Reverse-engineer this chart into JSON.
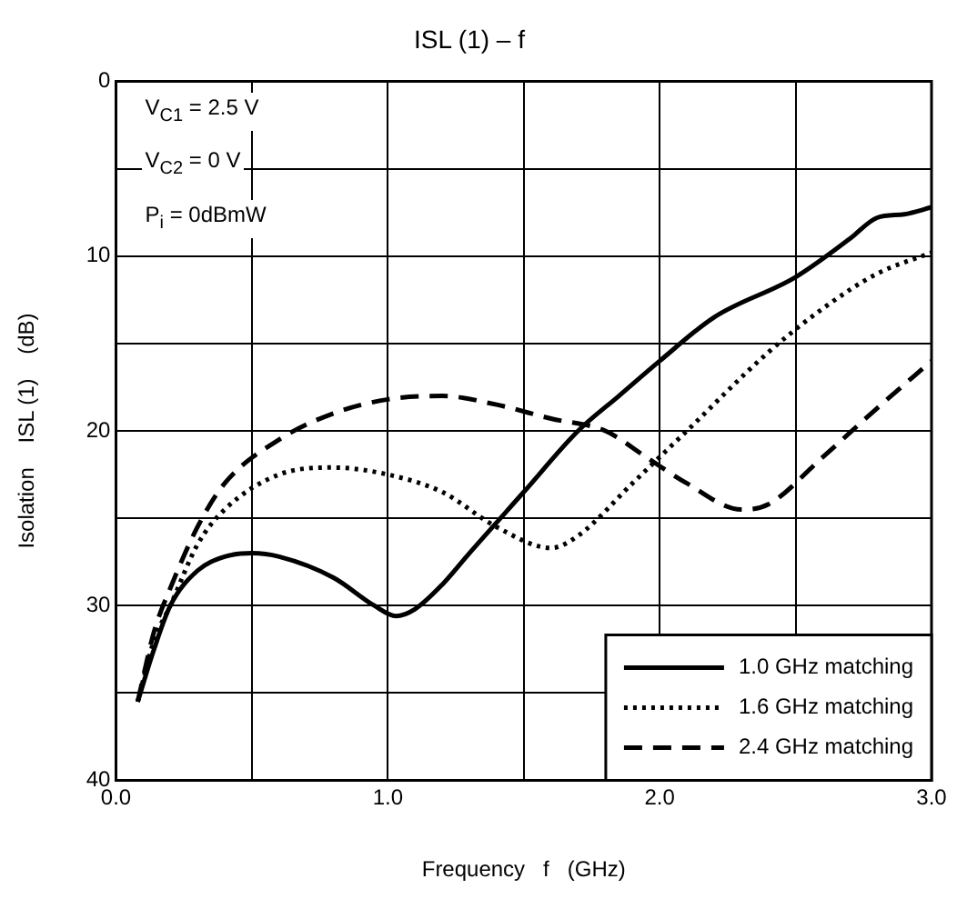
{
  "chart_data": {
    "type": "line",
    "title": "ISL (1) – f",
    "xlabel": "Frequency   f   (GHz)",
    "ylabel": "Isolation    ISL (1)    (dB)",
    "xlim": [
      0,
      3
    ],
    "ylim": [
      40,
      0
    ],
    "xticks": [
      {
        "value": 0,
        "label": "0.0"
      },
      {
        "value": 0.5,
        "label": null
      },
      {
        "value": 1,
        "label": "1.0"
      },
      {
        "value": 1.5,
        "label": null
      },
      {
        "value": 2,
        "label": "2.0"
      },
      {
        "value": 2.5,
        "label": null
      },
      {
        "value": 3,
        "label": "3.0"
      }
    ],
    "yticks": [
      0,
      {
        "value": 5,
        "label": null
      },
      10,
      {
        "value": 15,
        "label": null
      },
      20,
      {
        "value": 25,
        "label": null
      },
      30,
      {
        "value": 35,
        "label": null
      },
      40
    ],
    "grid": true,
    "legend": "bottom right",
    "marker": "none",
    "annotations": [
      "V$_{C1}$ = 2.5 V",
      "V$_{C2}$ = 0 V",
      "P$_{i}$ = 0dBmW"
    ],
    "series": [
      {
        "name": "1.0 GHz matching",
        "color": "#000000",
        "line_style": "solid",
        "x": [
          0.08,
          0.14,
          0.2,
          0.3,
          0.4,
          0.5,
          0.6,
          0.8,
          0.95,
          1.03,
          1.1,
          1.2,
          1.3,
          1.5,
          1.7,
          1.85,
          2.0,
          2.2,
          2.5,
          2.7,
          2.8,
          2.9,
          3.0
        ],
        "values": [
          35.5,
          32.5,
          30,
          28,
          27.2,
          27,
          27.2,
          28.4,
          30,
          30.6,
          30.2,
          28.8,
          27,
          23.5,
          20,
          18,
          16,
          13.5,
          11.2,
          9,
          7.8,
          7.6,
          7.2
        ]
      },
      {
        "name": "1.6 GHz matching",
        "color": "#000000",
        "line_style": "dotted",
        "x": [
          0.08,
          0.14,
          0.2,
          0.3,
          0.4,
          0.6,
          0.8,
          1.0,
          1.2,
          1.4,
          1.6,
          1.7,
          1.9,
          2.1,
          2.4,
          2.6,
          2.8,
          3.0
        ],
        "values": [
          35.5,
          32,
          30,
          26.5,
          24.5,
          22.5,
          22.1,
          22.5,
          23.5,
          25.5,
          26.7,
          26,
          23,
          20,
          15.5,
          13,
          11,
          9.8
        ]
      },
      {
        "name": "2.4 GHz matching",
        "color": "#000000",
        "line_style": "dashed",
        "x": [
          0.08,
          0.14,
          0.2,
          0.3,
          0.4,
          0.6,
          0.8,
          1.0,
          1.2,
          1.4,
          1.6,
          1.8,
          1.95,
          2.1,
          2.3,
          2.4,
          2.6,
          2.8,
          3.0
        ],
        "values": [
          35.5,
          31.5,
          29,
          25.5,
          23,
          20.5,
          19,
          18.2,
          18,
          18.5,
          19.3,
          20,
          21.5,
          23,
          24.5,
          24.2,
          21.5,
          18.7,
          16
        ]
      }
    ]
  }
}
